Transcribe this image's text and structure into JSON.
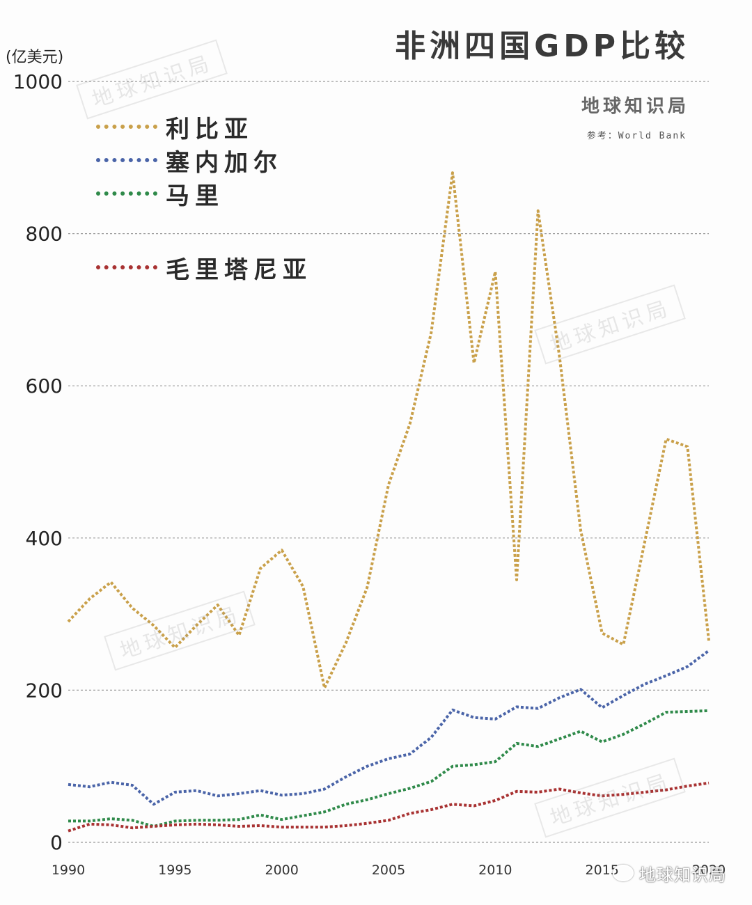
{
  "title": "非洲四国GDP比较",
  "unit_label": "(亿美元)",
  "brand": "地球知识局",
  "source": "参考：World Bank",
  "watermark_text": "地球知识局",
  "footer_mark": "地球知识局",
  "chart_data": {
    "type": "line",
    "ylim": [
      0,
      1000
    ],
    "yticks": [
      0,
      200,
      400,
      600,
      800,
      1000
    ],
    "xlim": [
      1990,
      2020
    ],
    "xticks": [
      "1990",
      "1995",
      "2000",
      "2005",
      "2010",
      "2015",
      "2020"
    ],
    "grid": "horizontal-dotted",
    "legend_position": "top-left",
    "x": [
      1990,
      1991,
      1992,
      1993,
      1994,
      1995,
      1996,
      1997,
      1998,
      1999,
      2000,
      2001,
      2002,
      2003,
      2004,
      2005,
      2006,
      2007,
      2008,
      2009,
      2010,
      2011,
      2012,
      2013,
      2014,
      2015,
      2016,
      2017,
      2018,
      2019,
      2020
    ],
    "series": [
      {
        "name": "利比亚",
        "color": "#c9a04a",
        "values": [
          290,
          320,
          342,
          308,
          285,
          256,
          285,
          312,
          272,
          360,
          384,
          336,
          203,
          262,
          335,
          470,
          550,
          670,
          880,
          630,
          750,
          345,
          830,
          640,
          410,
          275,
          260,
          395,
          530,
          520,
          265
        ]
      },
      {
        "name": "塞内加尔",
        "color": "#4a64a8",
        "values": [
          76,
          73,
          79,
          75,
          50,
          66,
          68,
          61,
          64,
          68,
          62,
          64,
          70,
          86,
          100,
          110,
          116,
          138,
          174,
          164,
          162,
          178,
          176,
          190,
          201,
          177,
          193,
          208,
          219,
          231,
          252
        ]
      },
      {
        "name": "马里",
        "color": "#2f8a4a",
        "values": [
          28,
          28,
          31,
          29,
          21,
          28,
          29,
          29,
          30,
          36,
          30,
          35,
          40,
          50,
          56,
          64,
          71,
          80,
          100,
          102,
          106,
          130,
          126,
          136,
          146,
          132,
          142,
          156,
          171,
          172,
          173
        ]
      },
      {
        "name": "毛里塔尼亚",
        "color": "#a83232",
        "values": [
          15,
          24,
          23,
          19,
          21,
          23,
          24,
          23,
          21,
          22,
          20,
          20,
          20,
          22,
          25,
          29,
          38,
          43,
          50,
          48,
          55,
          67,
          66,
          70,
          65,
          61,
          63,
          66,
          69,
          74,
          78
        ]
      }
    ]
  }
}
